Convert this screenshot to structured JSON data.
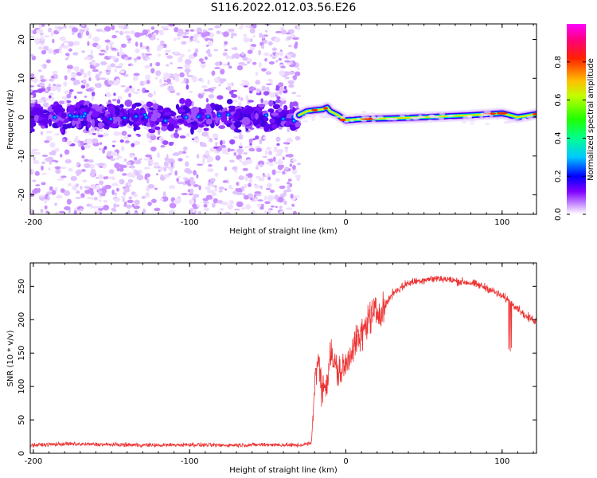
{
  "figure": {
    "title": "S116.2022.012.03.56.E26"
  },
  "chart_data": [
    {
      "type": "heatmap",
      "title": "S116.2022.012.03.56.E26",
      "xlabel": "Height of straight line (km)",
      "ylabel": "Frequency (Hz)",
      "xlim": [
        -202,
        122
      ],
      "ylim": [
        -25,
        24
      ],
      "xticks": [
        -200,
        -100,
        0,
        100
      ],
      "yticks": [
        -20,
        -10,
        0,
        10,
        20
      ],
      "colorbar": {
        "label": "Normalized spectral amplitude",
        "range": [
          0,
          1
        ],
        "ticks": [
          0.0,
          0.2,
          0.4,
          0.6,
          0.8
        ],
        "tick_labels": [
          "0.0",
          "0.2",
          "0.4",
          "0.6",
          "0.8"
        ],
        "colormap": [
          "#ffffff",
          "#b070ff",
          "#6000ff",
          "#0000ff",
          "#00c8ff",
          "#00ff80",
          "#40ff00",
          "#ffff00",
          "#ff8000",
          "#ff0000",
          "#ff00ff"
        ]
      },
      "ridge": {
        "x": [
          -30,
          -25,
          -20,
          -15,
          -12,
          -10,
          -5,
          0,
          10,
          30,
          50,
          80,
          100,
          110,
          115,
          122
        ],
        "y": [
          0.5,
          1.5,
          1.8,
          2.0,
          2.5,
          1.5,
          0.5,
          -0.8,
          -0.5,
          -0.3,
          0,
          0.5,
          1.0,
          0.0,
          0.3,
          0.8
        ]
      },
      "noise_region": {
        "x": [
          -202,
          -30
        ],
        "y": [
          -25,
          24
        ],
        "core_band": [
          -4,
          4
        ]
      }
    },
    {
      "type": "line",
      "xlabel": "Height of straight line (km)",
      "ylabel": "SNR (10 * v/v)",
      "xlim": [
        -202,
        122
      ],
      "ylim": [
        0,
        285
      ],
      "xticks": [
        -200,
        -100,
        0,
        100
      ],
      "yticks": [
        0,
        50,
        100,
        150,
        200,
        250
      ],
      "series": [
        {
          "color": "#ee3333",
          "x": [
            -202,
            -180,
            -150,
            -120,
            -100,
            -80,
            -50,
            -30,
            -22,
            -20,
            -18,
            -15,
            -12,
            -10,
            -5,
            0,
            5,
            10,
            15,
            20,
            25,
            30,
            40,
            50,
            60,
            70,
            80,
            90,
            100,
            105,
            110,
            115,
            122
          ],
          "y": [
            12,
            14,
            13,
            12,
            13,
            12,
            13,
            12,
            15,
            110,
            140,
            95,
            110,
            150,
            120,
            130,
            165,
            175,
            205,
            210,
            220,
            240,
            255,
            260,
            262,
            258,
            255,
            248,
            235,
            228,
            218,
            205,
            198
          ]
        }
      ]
    }
  ]
}
